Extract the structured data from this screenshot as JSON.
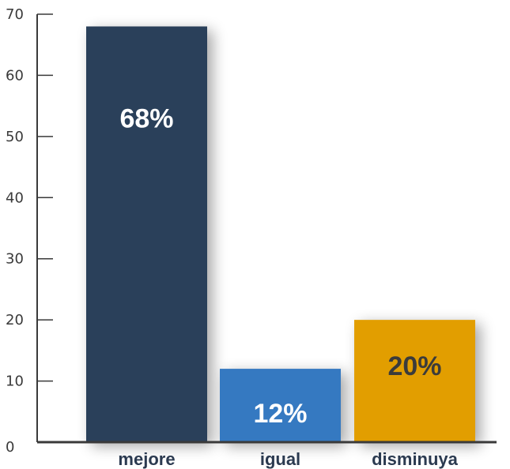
{
  "chart_data": {
    "type": "bar",
    "categories": [
      "mejore",
      "igual",
      "disminuya"
    ],
    "values": [
      68,
      12,
      20
    ],
    "data_labels": [
      "68%",
      "12%",
      "20%"
    ],
    "colors": [
      "#2a3f5a",
      "#3479c1",
      "#e29e00"
    ],
    "data_label_colors": [
      "#ffffff",
      "#ffffff",
      "#3b3b3b"
    ],
    "ylim": [
      0,
      70
    ],
    "yticks": [
      0,
      10,
      20,
      30,
      40,
      50,
      60,
      70
    ],
    "grid": false,
    "legend": "none",
    "axis_color": "#3a3a3a"
  }
}
